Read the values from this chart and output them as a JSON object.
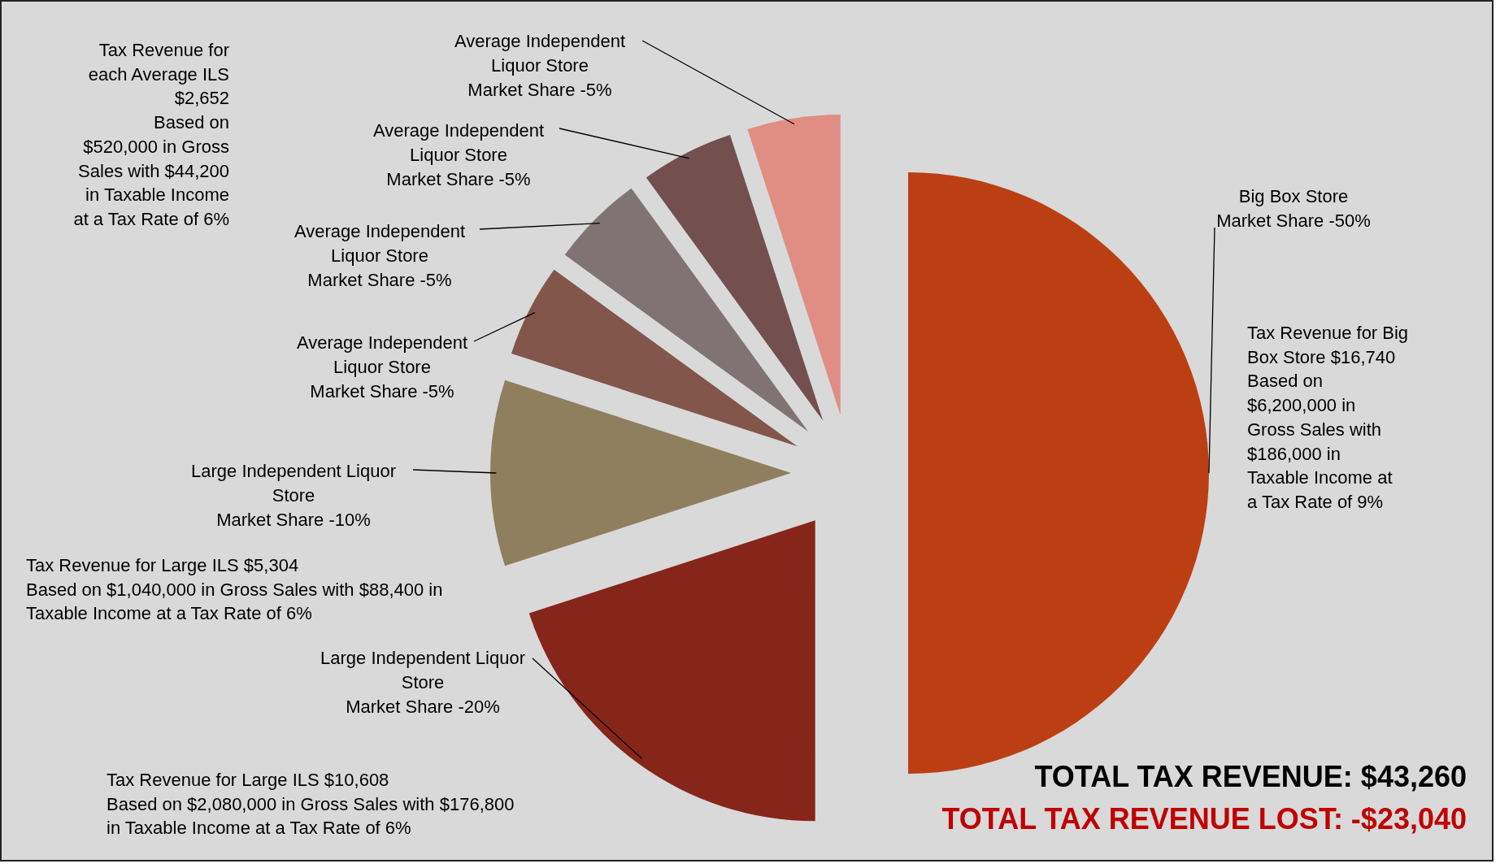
{
  "chart_data": {
    "type": "pie",
    "categories": [
      "Big Box Store\nMarket Share -50%",
      "Large Independent Liquor\nStore\nMarket    Share -20%",
      "Large Independent Liquor\nStore\nMarket Share -10%",
      "Average Independent\nLiquor Store\nMarket Share -5%",
      "Average Independent\nLiquor Store\nMarket Share -5%",
      "Average Independent\nLiquor Store\nMarket Share -5%",
      "Average Independent\nLiquor Store\nMarket Share -5%"
    ],
    "values": [
      50,
      20,
      10,
      5,
      5,
      5,
      5
    ],
    "colors": [
      "#bc3f14",
      "#86261b",
      "#8f7f5f",
      "#82564a",
      "#807373",
      "#734f4f",
      "#e08e84"
    ],
    "annotations": [
      "Tax Revenue for\neach Average ILS\n$2,652\n\nBased on\n$520,000 in Gross\nSales with $44,200\nin Taxable Income\nat a Tax Rate of 6%",
      "Tax Revenue for Big\nBox Store $16,740\n\nBased on\n$6,200,000 in\nGross Sales with\n$186,000 in\nTaxable Income at\na Tax Rate of 9%",
      "Tax Revenue for Large ILS $5,304\nBased on $1,040,000 in Gross Sales with $88,400 in\nTaxable Income at a Tax Rate of 6%",
      "Tax Revenue for Large ILS $10,608\nBased on $2,080,000 in Gross Sales with $176,800\nin Taxable Income at a Tax Rate of 6%",
      "TOTAL TAX REVENUE: $43,260",
      "TOTAL TAX REVENUE LOST: -$23,040"
    ]
  }
}
